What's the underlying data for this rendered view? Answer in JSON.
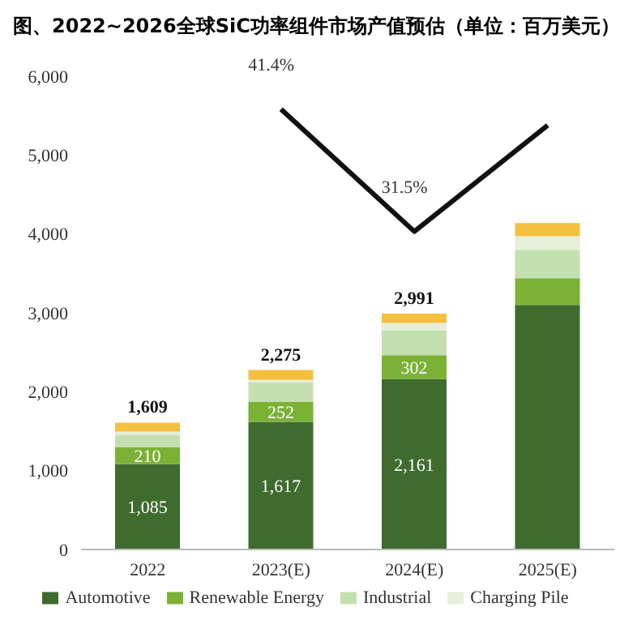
{
  "chart_data": {
    "type": "bar",
    "title": "图、2022~2026全球SiC功率组件市场产值预估（单位：百万美元）",
    "categories": [
      "2022",
      "2023(E)",
      "2024(E)",
      "2025(E)"
    ],
    "stacked": true,
    "ylim": [
      0,
      6000
    ],
    "yticks": [
      0,
      {
        "value": 1000,
        "label": "1,000"
      },
      {
        "value": 2000,
        "label": "2,000"
      },
      {
        "value": 3000,
        "label": "3,000"
      },
      {
        "value": 4000,
        "label": "4,000"
      },
      {
        "value": 5000,
        "label": "5,000"
      },
      {
        "value": 6000,
        "label": "6,000"
      }
    ],
    "series": [
      {
        "name": "Automotive",
        "color": "#3f6b2e",
        "values": [
          1085,
          1617,
          2161,
          3100
        ],
        "value_labels": [
          "1,085",
          "1,617",
          "2,161",
          null
        ]
      },
      {
        "name": "Renewable Energy",
        "color": "#7bb236",
        "values": [
          210,
          252,
          302,
          340
        ],
        "value_labels": [
          "210",
          "252",
          "302",
          null
        ]
      },
      {
        "name": "Industrial",
        "color": "#c4e0b0",
        "values": [
          160,
          247,
          317,
          360
        ]
      },
      {
        "name": "Charging Pile",
        "color": "#e6efd8",
        "values": [
          40,
          35,
          91,
          170
        ]
      },
      {
        "color": "#f4c03e",
        "values": [
          114,
          124,
          120,
          169
        ]
      },
      {
        "type": "line",
        "axis": "y2",
        "color": "#111111",
        "values": [
          null,
          41.4,
          31.5,
          40.1
        ],
        "value_labels": [
          null,
          "41.4%",
          "31.5%",
          null
        ]
      }
    ],
    "totals": [
      "1,609",
      "2,275",
      "2,991",
      null
    ],
    "legend": "bottom",
    "marker": "none",
    "line_style": "solid"
  }
}
